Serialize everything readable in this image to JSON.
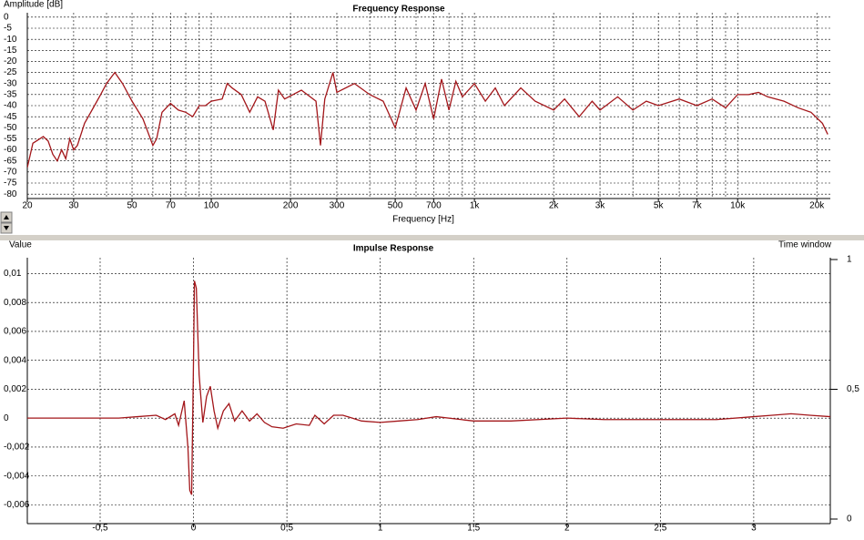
{
  "chart_data": [
    {
      "type": "line",
      "title": "Frequency Response",
      "y_label": "Amplitude [dB]",
      "x_label": "Frequency [Hz]",
      "xscale": "log",
      "grid": true,
      "xlim": [
        20,
        22500
      ],
      "ylim": [
        -82,
        2
      ],
      "xticks": [
        20,
        30,
        50,
        70,
        100,
        200,
        300,
        500,
        700,
        {
          "value": 1000,
          "label": "1k"
        },
        {
          "value": 2000,
          "label": "2k"
        },
        {
          "value": 3000,
          "label": "3k"
        },
        {
          "value": 5000,
          "label": "5k"
        },
        {
          "value": 7000,
          "label": "7k"
        },
        {
          "value": 10000,
          "label": "10k"
        },
        {
          "value": 20000,
          "label": "20k"
        }
      ],
      "minor_xticks": [
        40,
        60,
        80,
        90,
        400,
        600,
        800,
        900,
        4000,
        6000,
        8000,
        9000
      ],
      "yticks": [
        0,
        -5,
        -10,
        -15,
        -20,
        -25,
        -30,
        -35,
        -40,
        -45,
        -50,
        -55,
        -60,
        -65,
        -70,
        -75,
        -80
      ],
      "series": [
        {
          "color": "#a3161a",
          "x": [
            20,
            21,
            23,
            24,
            25,
            26,
            27,
            28,
            29,
            30,
            31,
            33,
            36,
            38,
            40,
            43,
            46,
            50,
            55,
            60,
            62,
            65,
            70,
            75,
            80,
            85,
            90,
            95,
            100,
            110,
            115,
            120,
            130,
            140,
            150,
            160,
            172,
            180,
            190,
            220,
            250,
            260,
            270,
            290,
            300,
            350,
            400,
            450,
            500,
            550,
            600,
            650,
            700,
            750,
            800,
            850,
            900,
            1000,
            1100,
            1200,
            1300,
            1500,
            1700,
            2000,
            2200,
            2500,
            2800,
            3000,
            3500,
            4000,
            4500,
            5000,
            6000,
            7000,
            8000,
            9000,
            10000,
            11000,
            12000,
            13000,
            15000,
            17000,
            19000,
            21000,
            22000
          ],
          "values": [
            -68,
            -57,
            -54,
            -56,
            -62,
            -65,
            -60,
            -64,
            -55,
            -60,
            -58,
            -48,
            -40,
            -35,
            -30,
            -25,
            -30,
            -38,
            -46,
            -58,
            -55,
            -43,
            -39,
            -42,
            -43,
            -45,
            -40,
            -40,
            -38,
            -37,
            -30,
            -32,
            -35,
            -43,
            -36,
            -38,
            -51,
            -33,
            -37,
            -33,
            -38,
            -58,
            -37,
            -25,
            -34,
            -30,
            -35,
            -38,
            -50,
            -32,
            -42,
            -30,
            -46,
            -28,
            -42,
            -29,
            -36,
            -30,
            -38,
            -32,
            -40,
            -32,
            -38,
            -42,
            -37,
            -45,
            -38,
            -42,
            -36,
            -42,
            -38,
            -40,
            -37,
            -40,
            -37,
            -41,
            -35,
            -35,
            -34,
            -36,
            -38,
            -41,
            -43,
            -48,
            -53
          ]
        }
      ]
    },
    {
      "type": "line",
      "title": "Impulse Response",
      "y_label": "Value",
      "y2_label": "Time window",
      "xscale": "linear",
      "grid": true,
      "xlim": [
        -0.89,
        3.41
      ],
      "ylim": [
        -0.0073,
        0.0111
      ],
      "y2lim": [
        -0.0175,
        1.007
      ],
      "xticks": [
        {
          "value": -0.5,
          "label": "-0,5"
        },
        0,
        {
          "value": 0.5,
          "label": "0,5"
        },
        1,
        {
          "value": 1.5,
          "label": "1,5"
        },
        2,
        {
          "value": 2.5,
          "label": "2,5"
        },
        3
      ],
      "yticks": [
        {
          "value": 0.01,
          "label": "0,01"
        },
        {
          "value": 0.008,
          "label": "0,008"
        },
        {
          "value": 0.006,
          "label": "0,006"
        },
        {
          "value": 0.004,
          "label": "0,004"
        },
        {
          "value": 0.002,
          "label": "0,002"
        },
        0,
        {
          "value": -0.002,
          "label": "-0,002"
        },
        {
          "value": -0.004,
          "label": "-0,004"
        },
        {
          "value": -0.006,
          "label": "-0,006"
        }
      ],
      "y2ticks": [
        0,
        {
          "value": 0.5,
          "label": "0,5"
        },
        1
      ],
      "series": [
        {
          "color": "#a3161a",
          "x": [
            -0.89,
            -0.4,
            -0.3,
            -0.2,
            -0.15,
            -0.1,
            -0.08,
            -0.05,
            -0.03,
            -0.02,
            -0.01,
            0,
            0.005,
            0.015,
            0.03,
            0.05,
            0.07,
            0.09,
            0.11,
            0.13,
            0.16,
            0.19,
            0.22,
            0.26,
            0.3,
            0.34,
            0.38,
            0.42,
            0.48,
            0.55,
            0.62,
            0.65,
            0.7,
            0.75,
            0.8,
            0.9,
            1.0,
            1.1,
            1.2,
            1.3,
            1.5,
            1.7,
            2.0,
            2.2,
            2.5,
            2.8,
            3.0,
            3.1,
            3.2,
            3.3,
            3.41
          ],
          "values": [
            0,
            0,
            0.0001,
            0.0002,
            -0.0001,
            0.0003,
            -0.0005,
            0.0012,
            -0.002,
            -0.005,
            -0.0053,
            0.004,
            0.0095,
            0.009,
            0.003,
            -0.0003,
            0.0015,
            0.0022,
            0.0005,
            -0.0007,
            0.0005,
            0.001,
            -0.0002,
            0.0005,
            -0.0002,
            0.0003,
            -0.0003,
            -0.0006,
            -0.0007,
            -0.0004,
            -0.0005,
            0.0002,
            -0.0004,
            0.0002,
            0.0002,
            -0.0002,
            -0.0003,
            -0.0002,
            -0.0001,
            0.0001,
            -0.0002,
            -0.0002,
            0,
            -0.0001,
            -0.0001,
            -0.0001,
            0.0001,
            0.0002,
            0.0003,
            0.0002,
            0.0001
          ]
        }
      ]
    }
  ]
}
